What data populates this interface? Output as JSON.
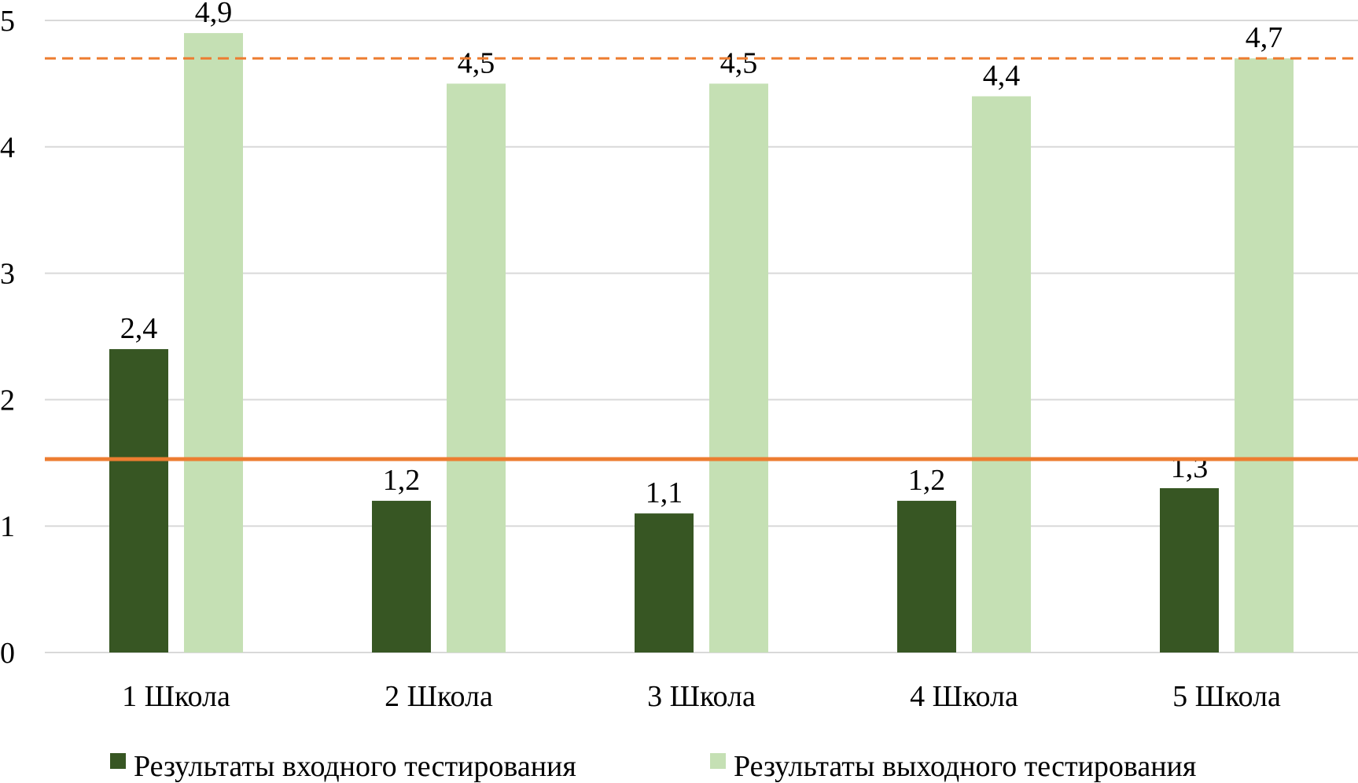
{
  "chart_data": {
    "type": "bar",
    "categories": [
      "1 Школа",
      "2 Школа",
      "3 Школа",
      "4 Школа",
      "5 Школа"
    ],
    "series": [
      {
        "name": "Результаты входного тестирования",
        "values": [
          2.4,
          1.2,
          1.1,
          1.2,
          1.3
        ],
        "labels": [
          "2,4",
          "1,2",
          "1,1",
          "1,2",
          "1,3"
        ],
        "color": "#375623"
      },
      {
        "name": "Результаты выходного тестирования",
        "values": [
          4.9,
          4.5,
          4.5,
          4.4,
          4.7
        ],
        "labels": [
          "4,9",
          "4,5",
          "4,5",
          "4,4",
          "4,7"
        ],
        "color": "#c5e0b4"
      }
    ],
    "y_ticks": [
      "0",
      "1",
      "2",
      "3",
      "4",
      "5"
    ],
    "ylim": [
      0,
      5
    ],
    "reference_lines": [
      {
        "value": 1.53,
        "style": "solid",
        "color": "#ed7d31"
      },
      {
        "value": 4.7,
        "style": "dashed",
        "color": "#ed7d31"
      }
    ],
    "grid": true,
    "legend_position": "bottom"
  }
}
